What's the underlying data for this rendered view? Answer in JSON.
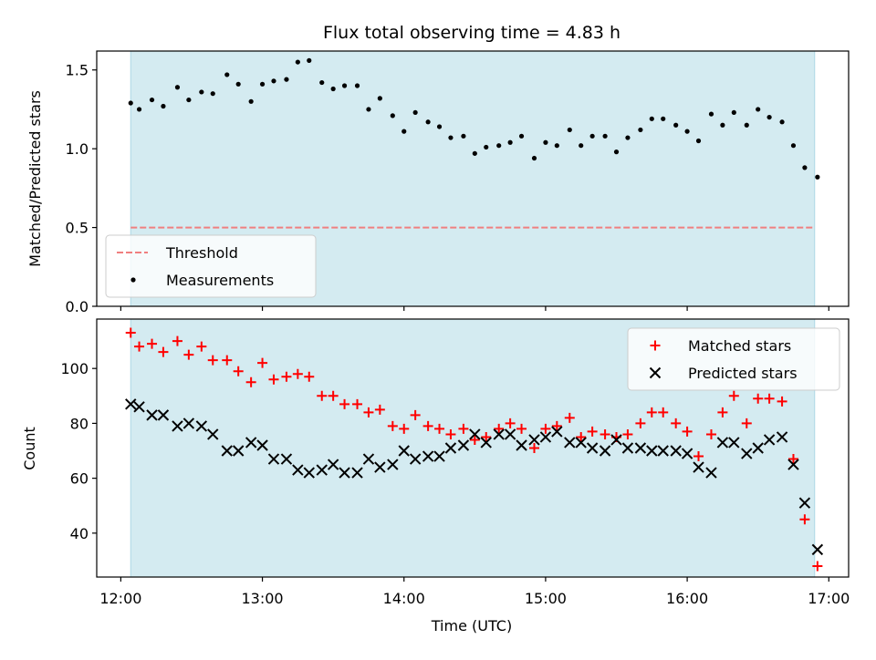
{
  "chart_data": [
    {
      "type": "scatter",
      "title": "Flux total observing time = 4.83 h",
      "ylabel": "Matched/Predicted stars",
      "ylim": [
        0,
        1.62
      ],
      "yticks": [
        0.0,
        0.5,
        1.0,
        1.5
      ],
      "ytick_labels": [
        "0.0",
        "0.5",
        "1.0",
        "1.5"
      ],
      "xlim_hours": [
        11.83,
        17.14
      ],
      "observing_window_hours": [
        12.07,
        16.9
      ],
      "observing_window_color": "#d4ebf1",
      "legend_position": "lower-left",
      "series": [
        {
          "name": "Threshold",
          "style": "dashed-line",
          "color": "#f07f7f",
          "x": [
            12.07,
            16.9
          ],
          "y": [
            0.5,
            0.5
          ]
        },
        {
          "name": "Measurements",
          "style": "dot",
          "color": "#000000",
          "x": [
            12.07,
            12.13,
            12.22,
            12.3,
            12.4,
            12.48,
            12.57,
            12.65,
            12.75,
            12.83,
            12.92,
            13.0,
            13.08,
            13.17,
            13.25,
            13.33,
            13.42,
            13.5,
            13.58,
            13.67,
            13.75,
            13.83,
            13.92,
            14.0,
            14.08,
            14.17,
            14.25,
            14.33,
            14.42,
            14.5,
            14.58,
            14.67,
            14.75,
            14.83,
            14.92,
            15.0,
            15.08,
            15.17,
            15.25,
            15.33,
            15.42,
            15.5,
            15.58,
            15.67,
            15.75,
            15.83,
            15.92,
            16.0,
            16.08,
            16.17,
            16.25,
            16.33,
            16.42,
            16.5,
            16.58,
            16.67,
            16.75,
            16.83,
            16.92
          ],
          "y": [
            1.29,
            1.25,
            1.31,
            1.27,
            1.39,
            1.31,
            1.36,
            1.35,
            1.47,
            1.41,
            1.3,
            1.41,
            1.43,
            1.44,
            1.55,
            1.56,
            1.42,
            1.38,
            1.4,
            1.4,
            1.25,
            1.32,
            1.21,
            1.11,
            1.23,
            1.17,
            1.14,
            1.07,
            1.08,
            0.97,
            1.01,
            1.02,
            1.04,
            1.08,
            0.94,
            1.04,
            1.02,
            1.12,
            1.02,
            1.08,
            1.08,
            0.98,
            1.07,
            1.12,
            1.19,
            1.19,
            1.15,
            1.11,
            1.05,
            1.22,
            1.15,
            1.23,
            1.15,
            1.25,
            1.2,
            1.17,
            1.02,
            0.88,
            0.82
          ]
        }
      ]
    },
    {
      "type": "scatter",
      "xlabel": "Time (UTC)",
      "ylabel": "Count",
      "ylim": [
        24,
        118
      ],
      "yticks": [
        40,
        60,
        80,
        100
      ],
      "ytick_labels": [
        "40",
        "60",
        "80",
        "100"
      ],
      "xlim_hours": [
        11.83,
        17.14
      ],
      "xticks_hours": [
        12,
        13,
        14,
        15,
        16,
        17
      ],
      "xtick_labels": [
        "12:00",
        "13:00",
        "14:00",
        "15:00",
        "16:00",
        "17:00"
      ],
      "observing_window_hours": [
        12.07,
        16.9
      ],
      "observing_window_color": "#d4ebf1",
      "legend_position": "upper-right",
      "series": [
        {
          "name": "Matched stars",
          "style": "plus",
          "color": "#ff0000",
          "x": [
            12.07,
            12.13,
            12.22,
            12.3,
            12.4,
            12.48,
            12.57,
            12.65,
            12.75,
            12.83,
            12.92,
            13.0,
            13.08,
            13.17,
            13.25,
            13.33,
            13.42,
            13.5,
            13.58,
            13.67,
            13.75,
            13.83,
            13.92,
            14.0,
            14.08,
            14.17,
            14.25,
            14.33,
            14.42,
            14.5,
            14.58,
            14.67,
            14.75,
            14.83,
            14.92,
            15.0,
            15.08,
            15.17,
            15.25,
            15.33,
            15.42,
            15.5,
            15.58,
            15.67,
            15.75,
            15.83,
            15.92,
            16.0,
            16.08,
            16.17,
            16.25,
            16.33,
            16.42,
            16.5,
            16.58,
            16.67,
            16.75,
            16.83,
            16.92
          ],
          "y": [
            113,
            108,
            109,
            106,
            110,
            105,
            108,
            103,
            103,
            99,
            95,
            102,
            96,
            97,
            98,
            97,
            90,
            90,
            87,
            87,
            84,
            85,
            79,
            78,
            83,
            79,
            78,
            76,
            78,
            74,
            75,
            78,
            80,
            78,
            71,
            78,
            79,
            82,
            75,
            77,
            76,
            75,
            76,
            80,
            84,
            84,
            80,
            77,
            68,
            76,
            84,
            90,
            80,
            89,
            89,
            88,
            67,
            45,
            28
          ]
        },
        {
          "name": "Predicted stars",
          "style": "x",
          "color": "#000000",
          "x": [
            12.07,
            12.13,
            12.22,
            12.3,
            12.4,
            12.48,
            12.57,
            12.65,
            12.75,
            12.83,
            12.92,
            13.0,
            13.08,
            13.17,
            13.25,
            13.33,
            13.42,
            13.5,
            13.58,
            13.67,
            13.75,
            13.83,
            13.92,
            14.0,
            14.08,
            14.17,
            14.25,
            14.33,
            14.42,
            14.5,
            14.58,
            14.67,
            14.75,
            14.83,
            14.92,
            15.0,
            15.08,
            15.17,
            15.25,
            15.33,
            15.42,
            15.5,
            15.58,
            15.67,
            15.75,
            15.83,
            15.92,
            16.0,
            16.08,
            16.17,
            16.25,
            16.33,
            16.42,
            16.5,
            16.58,
            16.67,
            16.75,
            16.83,
            16.92
          ],
          "y": [
            87,
            86,
            83,
            83,
            79,
            80,
            79,
            76,
            70,
            70,
            73,
            72,
            67,
            67,
            63,
            62,
            63,
            65,
            62,
            62,
            67,
            64,
            65,
            70,
            67,
            68,
            68,
            71,
            72,
            76,
            73,
            76,
            76,
            72,
            74,
            75,
            77,
            73,
            73,
            71,
            70,
            74,
            71,
            71,
            70,
            70,
            70,
            69,
            64,
            62,
            73,
            73,
            69,
            71,
            74,
            75,
            65,
            51,
            34
          ]
        }
      ]
    }
  ]
}
